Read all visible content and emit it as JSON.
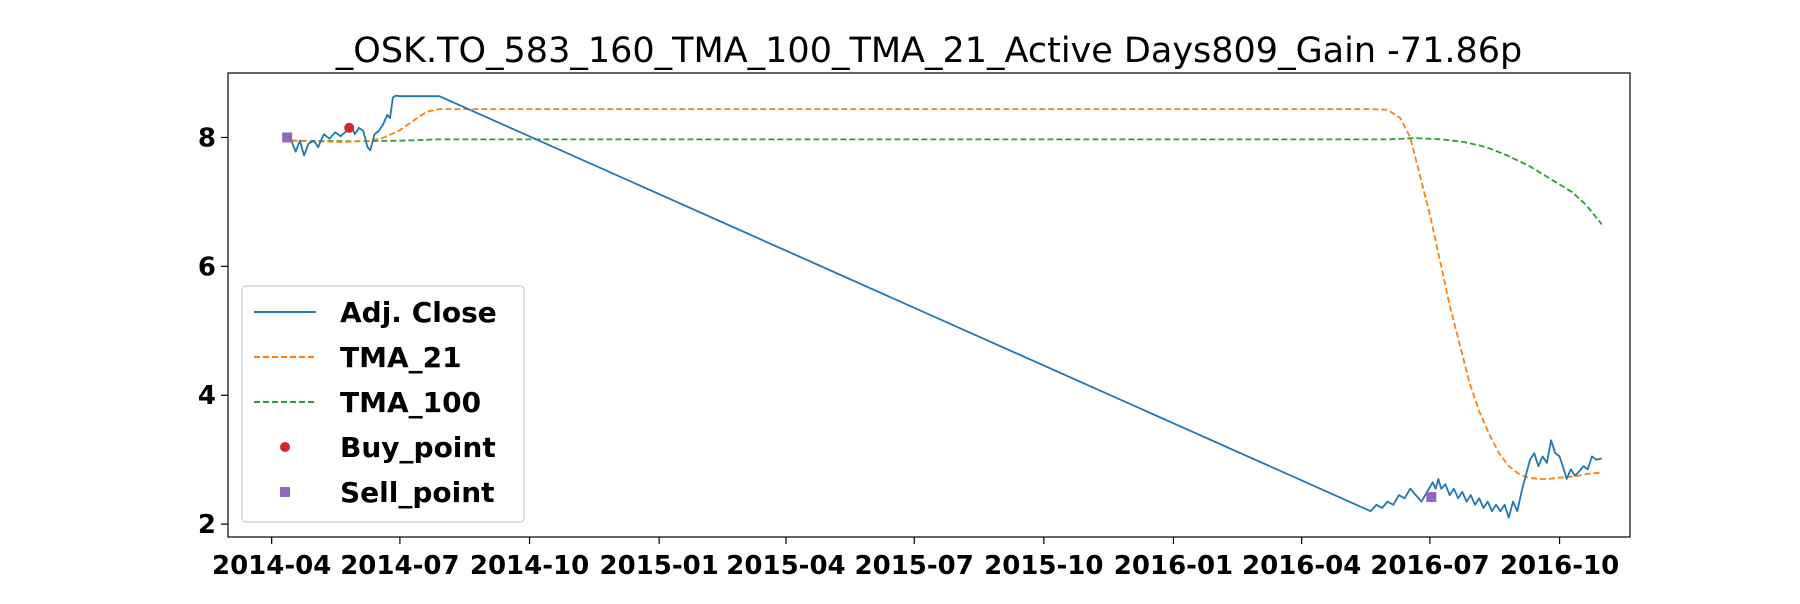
{
  "chart_data": {
    "type": "line",
    "title": "_OSK.TO_583_160_TMA_100_TMA_21_Active Days809_Gain -71.86p",
    "xlabel": "",
    "ylabel": "",
    "x_ticks": [
      "2014-04",
      "2014-07",
      "2014-10",
      "2015-01",
      "2015-04",
      "2015-07",
      "2015-10",
      "2016-01",
      "2016-04",
      "2016-07",
      "2016-10"
    ],
    "y_ticks": [
      "2",
      "4",
      "6",
      "8"
    ],
    "xlim": [
      "2014-03-01",
      "2016-11-20"
    ],
    "ylim": [
      1.8,
      9.0
    ],
    "grid": false,
    "legend_position": "center-left",
    "series": [
      {
        "name": "Adj. Close",
        "style": "solid",
        "color": "#1f77b4",
        "points": [
          [
            "2014-04-15",
            7.95
          ],
          [
            "2014-04-18",
            7.78
          ],
          [
            "2014-04-21",
            7.95
          ],
          [
            "2014-04-24",
            7.72
          ],
          [
            "2014-04-27",
            7.9
          ],
          [
            "2014-05-01",
            7.95
          ],
          [
            "2014-05-04",
            7.85
          ],
          [
            "2014-05-08",
            8.05
          ],
          [
            "2014-05-12",
            7.98
          ],
          [
            "2014-05-16",
            8.08
          ],
          [
            "2014-05-20",
            8.02
          ],
          [
            "2014-05-24",
            8.1
          ],
          [
            "2014-05-27",
            8.2
          ],
          [
            "2014-05-30",
            8.05
          ],
          [
            "2014-06-02",
            8.15
          ],
          [
            "2014-06-05",
            8.1
          ],
          [
            "2014-06-08",
            7.85
          ],
          [
            "2014-06-10",
            7.8
          ],
          [
            "2014-06-13",
            8.05
          ],
          [
            "2014-06-16",
            8.1
          ],
          [
            "2014-06-19",
            8.2
          ],
          [
            "2014-06-22",
            8.35
          ],
          [
            "2014-06-24",
            8.3
          ],
          [
            "2014-06-26",
            8.62
          ],
          [
            "2014-06-28",
            8.65
          ],
          [
            "2014-07-01",
            8.64
          ],
          [
            "2014-07-10",
            8.64
          ],
          [
            "2014-07-20",
            8.64
          ],
          [
            "2014-07-29",
            8.64
          ],
          [
            "2016-05-20",
            2.2
          ],
          [
            "2016-05-24",
            2.3
          ],
          [
            "2016-05-28",
            2.25
          ],
          [
            "2016-06-01",
            2.35
          ],
          [
            "2016-06-05",
            2.3
          ],
          [
            "2016-06-09",
            2.45
          ],
          [
            "2016-06-13",
            2.4
          ],
          [
            "2016-06-17",
            2.55
          ],
          [
            "2016-06-21",
            2.45
          ],
          [
            "2016-06-25",
            2.35
          ],
          [
            "2016-06-29",
            2.5
          ],
          [
            "2016-07-03",
            2.65
          ],
          [
            "2016-07-05",
            2.55
          ],
          [
            "2016-07-07",
            2.7
          ],
          [
            "2016-07-09",
            2.55
          ],
          [
            "2016-07-12",
            2.62
          ],
          [
            "2016-07-15",
            2.45
          ],
          [
            "2016-07-18",
            2.55
          ],
          [
            "2016-07-21",
            2.4
          ],
          [
            "2016-07-24",
            2.5
          ],
          [
            "2016-07-27",
            2.35
          ],
          [
            "2016-07-30",
            2.45
          ],
          [
            "2016-08-02",
            2.3
          ],
          [
            "2016-08-05",
            2.4
          ],
          [
            "2016-08-08",
            2.25
          ],
          [
            "2016-08-11",
            2.35
          ],
          [
            "2016-08-14",
            2.2
          ],
          [
            "2016-08-17",
            2.3
          ],
          [
            "2016-08-20",
            2.2
          ],
          [
            "2016-08-23",
            2.3
          ],
          [
            "2016-08-26",
            2.1
          ],
          [
            "2016-08-29",
            2.35
          ],
          [
            "2016-09-01",
            2.2
          ],
          [
            "2016-09-04",
            2.5
          ],
          [
            "2016-09-07",
            2.75
          ],
          [
            "2016-09-10",
            3.0
          ],
          [
            "2016-09-13",
            3.1
          ],
          [
            "2016-09-16",
            2.9
          ],
          [
            "2016-09-19",
            3.05
          ],
          [
            "2016-09-22",
            2.95
          ],
          [
            "2016-09-25",
            3.3
          ],
          [
            "2016-09-28",
            3.1
          ],
          [
            "2016-10-01",
            3.05
          ],
          [
            "2016-10-04",
            2.85
          ],
          [
            "2016-10-06",
            2.7
          ],
          [
            "2016-10-09",
            2.85
          ],
          [
            "2016-10-12",
            2.75
          ],
          [
            "2016-10-15",
            2.82
          ],
          [
            "2016-10-18",
            2.9
          ],
          [
            "2016-10-21",
            2.85
          ],
          [
            "2016-10-24",
            3.05
          ],
          [
            "2016-10-27",
            3.0
          ],
          [
            "2016-10-31",
            3.02
          ]
        ]
      },
      {
        "name": "TMA_21",
        "style": "dashed",
        "color": "#ff7f0e",
        "points": [
          [
            "2014-04-15",
            7.95
          ],
          [
            "2014-05-01",
            7.94
          ],
          [
            "2014-05-20",
            7.93
          ],
          [
            "2014-06-10",
            7.95
          ],
          [
            "2014-06-20",
            8.0
          ],
          [
            "2014-06-30",
            8.1
          ],
          [
            "2014-07-10",
            8.25
          ],
          [
            "2014-07-20",
            8.4
          ],
          [
            "2014-07-29",
            8.44
          ],
          [
            "2014-08-15",
            8.44
          ],
          [
            "2015-06-01",
            8.44
          ],
          [
            "2016-05-20",
            8.44
          ],
          [
            "2016-06-01",
            8.43
          ],
          [
            "2016-06-10",
            8.3
          ],
          [
            "2016-06-17",
            8.0
          ],
          [
            "2016-06-24",
            7.4
          ],
          [
            "2016-07-01",
            6.8
          ],
          [
            "2016-07-08",
            6.1
          ],
          [
            "2016-07-15",
            5.4
          ],
          [
            "2016-07-22",
            4.8
          ],
          [
            "2016-07-29",
            4.2
          ],
          [
            "2016-08-05",
            3.75
          ],
          [
            "2016-08-12",
            3.4
          ],
          [
            "2016-08-19",
            3.1
          ],
          [
            "2016-08-26",
            2.9
          ],
          [
            "2016-09-02",
            2.78
          ],
          [
            "2016-09-09",
            2.72
          ],
          [
            "2016-09-16",
            2.7
          ],
          [
            "2016-09-23",
            2.7
          ],
          [
            "2016-09-30",
            2.72
          ],
          [
            "2016-10-07",
            2.73
          ],
          [
            "2016-10-14",
            2.75
          ],
          [
            "2016-10-21",
            2.78
          ],
          [
            "2016-10-31",
            2.8
          ]
        ]
      },
      {
        "name": "TMA_100",
        "style": "dashed",
        "color": "#2ca02c",
        "points": [
          [
            "2014-04-15",
            7.95
          ],
          [
            "2014-06-01",
            7.94
          ],
          [
            "2014-07-01",
            7.95
          ],
          [
            "2014-07-29",
            7.97
          ],
          [
            "2014-09-01",
            7.97
          ],
          [
            "2015-06-01",
            7.97
          ],
          [
            "2016-06-01",
            7.97
          ],
          [
            "2016-06-20",
            7.99
          ],
          [
            "2016-07-10",
            7.97
          ],
          [
            "2016-07-25",
            7.93
          ],
          [
            "2016-08-10",
            7.85
          ],
          [
            "2016-08-25",
            7.72
          ],
          [
            "2016-09-10",
            7.55
          ],
          [
            "2016-09-25",
            7.35
          ],
          [
            "2016-10-10",
            7.15
          ],
          [
            "2016-10-20",
            6.95
          ],
          [
            "2016-10-31",
            6.65
          ]
        ]
      }
    ],
    "markers": [
      {
        "name": "Buy_point",
        "shape": "circle",
        "color": "#d62728",
        "points": [
          [
            "2014-05-26",
            8.15
          ]
        ]
      },
      {
        "name": "Sell_point",
        "shape": "square",
        "color": "#9467bd",
        "points": [
          [
            "2014-04-12",
            8.0
          ],
          [
            "2016-07-02",
            2.42
          ]
        ]
      }
    ]
  }
}
